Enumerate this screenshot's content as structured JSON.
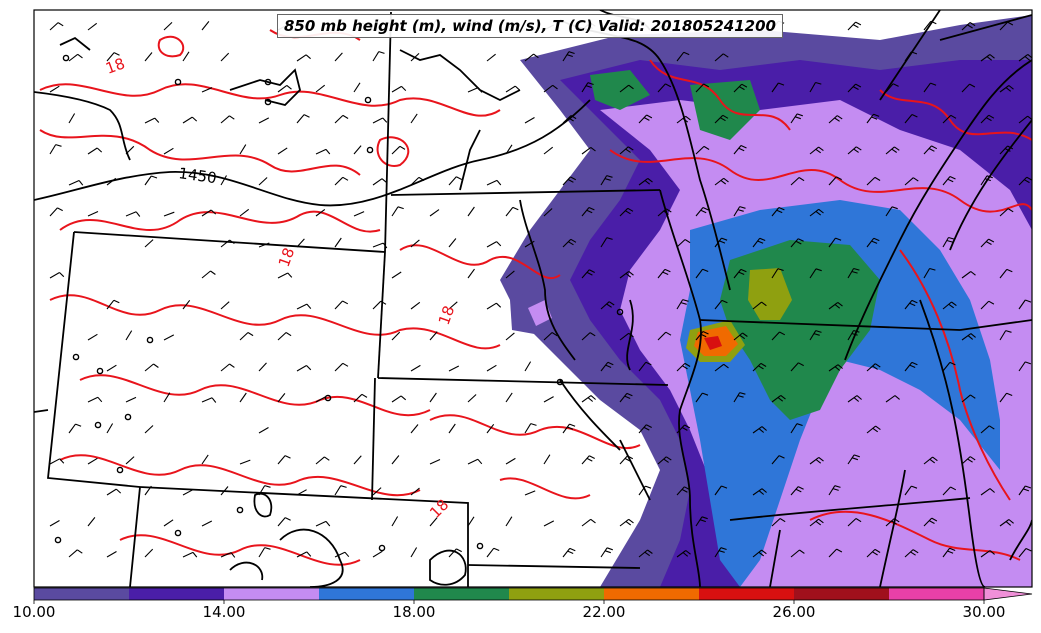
{
  "title": "850 mb height (m), wind (m/s), T (C) Valid: 201805241200",
  "map": {
    "height_contour_label": "1450",
    "temperature_contour_labels": [
      "18",
      "18",
      "18",
      "18"
    ],
    "temperature_contour_color": "#e8141c",
    "height_contour_color": "#000000",
    "boundary_color": "#000000"
  },
  "colorbar": {
    "tick_labels": [
      "10.00",
      "14.00",
      "18.00",
      "22.00",
      "26.00",
      "30.00"
    ],
    "levels": [
      10,
      12,
      14,
      16,
      18,
      20,
      22,
      24,
      26,
      28,
      30
    ],
    "colors": [
      "#5a4aa0",
      "#4a1ea8",
      "#c48cf2",
      "#2f76d8",
      "#20884c",
      "#8fa010",
      "#f06a00",
      "#d81010",
      "#a0101c",
      "#e840a8"
    ],
    "extend_color": "#f090d8"
  }
}
